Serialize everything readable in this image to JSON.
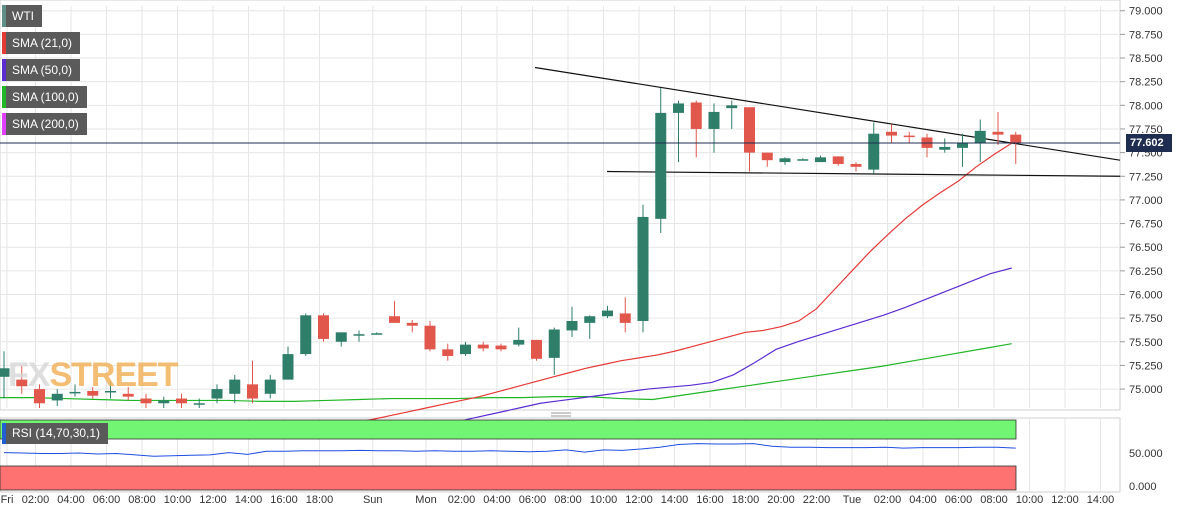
{
  "legend": [
    {
      "label": "WTI",
      "color": "#5f8f86"
    },
    {
      "label": "SMA (21,0)",
      "color": "#e53935"
    },
    {
      "label": "SMA (50,0)",
      "color": "#5b2dd1"
    },
    {
      "label": "SMA (100,0)",
      "color": "#21b626"
    },
    {
      "label": "SMA (200,0)",
      "color": "#e040fb"
    }
  ],
  "rsi_label": "RSI (14,70,30,1)",
  "watermark": {
    "part1": "FX",
    "part2": "STREET"
  },
  "current_price": "77.602",
  "colors": {
    "up": "#2f7e6a",
    "down": "#e2574c",
    "grid": "#e6e6e6",
    "rsi_overbought": "#72f572",
    "rsi_oversold": "#ff7272",
    "rsi_line": "#1f4ee0",
    "price_line": "#1e2d50"
  },
  "chart_data": {
    "type": "candlestick",
    "symbol": "WTI",
    "y_ticks": [
      "79.000",
      "78.750",
      "78.500",
      "78.250",
      "78.000",
      "77.750",
      "77.500",
      "77.250",
      "77.000",
      "76.750",
      "76.500",
      "76.250",
      "76.000",
      "75.750",
      "75.500",
      "75.250",
      "75.000"
    ],
    "ylim": [
      74.8,
      79.05
    ],
    "x_ticks": [
      "Fri",
      "02:00",
      "04:00",
      "06:00",
      "08:00",
      "10:00",
      "12:00",
      "14:00",
      "16:00",
      "18:00",
      "Sun",
      "Mon",
      "02:00",
      "04:00",
      "06:00",
      "08:00",
      "10:00",
      "12:00",
      "14:00",
      "16:00",
      "18:00",
      "20:00",
      "22:00",
      "Tue",
      "02:00",
      "04:00",
      "06:00",
      "08:00",
      "10:00",
      "12:00",
      "14:00"
    ],
    "candles": [
      {
        "o": 75.13,
        "h": 75.4,
        "l": 74.9,
        "c": 75.22
      },
      {
        "o": 75.1,
        "h": 75.25,
        "l": 74.95,
        "c": 75.03
      },
      {
        "o": 75.0,
        "h": 75.05,
        "l": 74.8,
        "c": 74.85
      },
      {
        "o": 74.88,
        "h": 75.0,
        "l": 74.82,
        "c": 74.95
      },
      {
        "o": 74.97,
        "h": 75.05,
        "l": 74.92,
        "c": 74.97
      },
      {
        "o": 74.98,
        "h": 75.02,
        "l": 74.9,
        "c": 74.93
      },
      {
        "o": 74.97,
        "h": 75.08,
        "l": 74.9,
        "c": 74.98
      },
      {
        "o": 74.95,
        "h": 75.02,
        "l": 74.88,
        "c": 74.92
      },
      {
        "o": 74.9,
        "h": 74.95,
        "l": 74.8,
        "c": 74.85
      },
      {
        "o": 74.85,
        "h": 74.92,
        "l": 74.8,
        "c": 74.88
      },
      {
        "o": 74.9,
        "h": 74.95,
        "l": 74.8,
        "c": 74.85
      },
      {
        "o": 74.85,
        "h": 74.9,
        "l": 74.8,
        "c": 74.85
      },
      {
        "o": 74.9,
        "h": 75.05,
        "l": 74.85,
        "c": 75.0
      },
      {
        "o": 74.95,
        "h": 75.15,
        "l": 74.85,
        "c": 75.1
      },
      {
        "o": 75.05,
        "h": 75.3,
        "l": 74.85,
        "c": 74.9
      },
      {
        "o": 74.95,
        "h": 75.15,
        "l": 74.9,
        "c": 75.1
      },
      {
        "o": 75.1,
        "h": 75.45,
        "l": 75.1,
        "c": 75.37
      },
      {
        "o": 75.37,
        "h": 75.8,
        "l": 75.35,
        "c": 75.78
      },
      {
        "o": 75.78,
        "h": 75.8,
        "l": 75.5,
        "c": 75.53
      },
      {
        "o": 75.5,
        "h": 75.6,
        "l": 75.45,
        "c": 75.6
      },
      {
        "o": 75.58,
        "h": 75.62,
        "l": 75.5,
        "c": 75.58
      },
      {
        "o": 75.58,
        "h": 75.6,
        "l": 75.58,
        "c": 75.59
      },
      {
        "o": 75.77,
        "h": 75.93,
        "l": 75.7,
        "c": 75.7
      },
      {
        "o": 75.7,
        "h": 75.73,
        "l": 75.6,
        "c": 75.67
      },
      {
        "o": 75.67,
        "h": 75.72,
        "l": 75.4,
        "c": 75.42
      },
      {
        "o": 75.42,
        "h": 75.48,
        "l": 75.3,
        "c": 75.35
      },
      {
        "o": 75.37,
        "h": 75.5,
        "l": 75.35,
        "c": 75.47
      },
      {
        "o": 75.47,
        "h": 75.5,
        "l": 75.4,
        "c": 75.43
      },
      {
        "o": 75.46,
        "h": 75.48,
        "l": 75.4,
        "c": 75.42
      },
      {
        "o": 75.47,
        "h": 75.65,
        "l": 75.45,
        "c": 75.52
      },
      {
        "o": 75.52,
        "h": 75.52,
        "l": 75.3,
        "c": 75.32
      },
      {
        "o": 75.33,
        "h": 75.65,
        "l": 75.15,
        "c": 75.63
      },
      {
        "o": 75.62,
        "h": 75.87,
        "l": 75.55,
        "c": 75.72
      },
      {
        "o": 75.7,
        "h": 75.78,
        "l": 75.53,
        "c": 75.77
      },
      {
        "o": 75.77,
        "h": 75.88,
        "l": 75.75,
        "c": 75.83
      },
      {
        "o": 75.8,
        "h": 75.97,
        "l": 75.6,
        "c": 75.7
      },
      {
        "o": 75.72,
        "h": 76.95,
        "l": 75.6,
        "c": 76.82
      },
      {
        "o": 76.8,
        "h": 78.18,
        "l": 76.65,
        "c": 77.92
      },
      {
        "o": 77.92,
        "h": 78.05,
        "l": 77.4,
        "c": 78.02
      },
      {
        "o": 78.03,
        "h": 78.05,
        "l": 77.45,
        "c": 77.75
      },
      {
        "o": 77.75,
        "h": 78.02,
        "l": 77.5,
        "c": 77.93
      },
      {
        "o": 77.97,
        "h": 78.05,
        "l": 77.75,
        "c": 78.0
      },
      {
        "o": 77.98,
        "h": 77.98,
        "l": 77.3,
        "c": 77.5
      },
      {
        "o": 77.5,
        "h": 77.5,
        "l": 77.35,
        "c": 77.42
      },
      {
        "o": 77.4,
        "h": 77.45,
        "l": 77.37,
        "c": 77.44
      },
      {
        "o": 77.43,
        "h": 77.44,
        "l": 77.42,
        "c": 77.43
      },
      {
        "o": 77.4,
        "h": 77.47,
        "l": 77.4,
        "c": 77.45
      },
      {
        "o": 77.46,
        "h": 77.46,
        "l": 77.36,
        "c": 77.38
      },
      {
        "o": 77.38,
        "h": 77.4,
        "l": 77.3,
        "c": 77.35
      },
      {
        "o": 77.32,
        "h": 77.82,
        "l": 77.28,
        "c": 77.7
      },
      {
        "o": 77.72,
        "h": 77.8,
        "l": 77.6,
        "c": 77.68
      },
      {
        "o": 77.68,
        "h": 77.72,
        "l": 77.6,
        "c": 77.67
      },
      {
        "o": 77.66,
        "h": 77.7,
        "l": 77.45,
        "c": 77.55
      },
      {
        "o": 77.53,
        "h": 77.65,
        "l": 77.5,
        "c": 77.56
      },
      {
        "o": 77.55,
        "h": 77.7,
        "l": 77.35,
        "c": 77.6
      },
      {
        "o": 77.6,
        "h": 77.85,
        "l": 77.4,
        "c": 77.73
      },
      {
        "o": 77.72,
        "h": 77.93,
        "l": 77.58,
        "c": 77.69
      },
      {
        "o": 77.69,
        "h": 77.72,
        "l": 77.38,
        "c": 77.6
      }
    ],
    "sma21": [
      74.6,
      74.62,
      74.65,
      74.68,
      74.72,
      74.76,
      74.8,
      74.84,
      74.88,
      74.92,
      74.97,
      75.02,
      75.07,
      75.12,
      75.17,
      75.22,
      75.26,
      75.3,
      75.33,
      75.36,
      75.4,
      75.45,
      75.5,
      75.55,
      75.6,
      75.62,
      75.66,
      75.72,
      75.85,
      76.05,
      76.25,
      76.45,
      76.63,
      76.8,
      76.95,
      77.08,
      77.2,
      77.35,
      77.48,
      77.6
    ],
    "sma50": [
      74.5,
      74.55,
      74.6,
      74.65,
      74.7,
      74.75,
      74.8,
      74.85,
      74.88,
      74.91,
      74.94,
      74.97,
      75.0,
      75.02,
      75.04,
      75.07,
      75.15,
      75.28,
      75.42,
      75.5,
      75.57,
      75.64,
      75.71,
      75.78,
      75.86,
      75.95,
      76.04,
      76.13,
      76.22,
      76.28
    ],
    "sma100": [
      74.91,
      74.91,
      74.9,
      74.89,
      74.88,
      74.88,
      74.88,
      74.88,
      74.87,
      74.87,
      74.88,
      74.89,
      74.9,
      74.9,
      74.9,
      74.91,
      74.91,
      74.92,
      74.92,
      74.9,
      74.89,
      74.94,
      74.99,
      75.04,
      75.09,
      75.14,
      75.19,
      75.24,
      75.3,
      75.36,
      75.42,
      75.48
    ],
    "resistance_line": {
      "from": 78.4,
      "to": 77.42
    },
    "support_line": {
      "from": 77.3,
      "to": 77.25
    },
    "rsi": {
      "ticks": [
        "50.000",
        "0.000"
      ],
      "ylim": [
        0,
        100
      ],
      "values": [
        52,
        51,
        50,
        50,
        51,
        49,
        50,
        47,
        44,
        45,
        46,
        47,
        52,
        48,
        55,
        55,
        56,
        56,
        56,
        57,
        56,
        56,
        55,
        56,
        55,
        55,
        56,
        55,
        54,
        55,
        58,
        53,
        58,
        57,
        60,
        64,
        70,
        72,
        71,
        71,
        72,
        66,
        64,
        64,
        63,
        63,
        63,
        64,
        62,
        63,
        63,
        63,
        64,
        64,
        62
      ]
    }
  }
}
